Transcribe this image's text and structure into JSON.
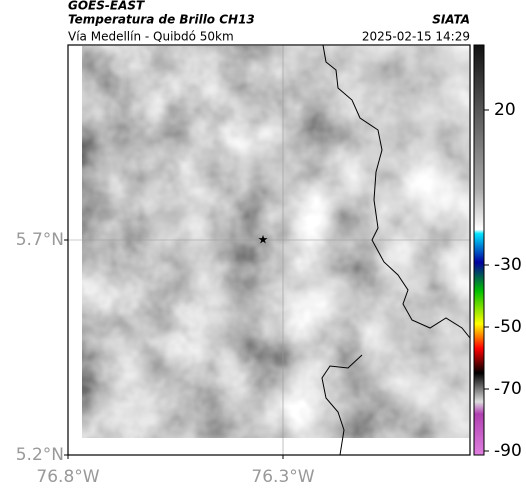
{
  "header": {
    "satellite": "GOES-EAST",
    "product": "Temperatura de Brillo CH13",
    "region": "Vía Medellín - Quibdó 50km",
    "source": "SIATA",
    "datetime": "2025-02-15 14:29"
  },
  "map": {
    "lat_labels": [
      "5.7°N",
      "5.2°N"
    ],
    "lon_labels": [
      "76.8°W",
      "76.3°W"
    ]
  },
  "colorbar": {
    "ticks": [
      20,
      -30,
      -50,
      -70,
      -90
    ]
  }
}
